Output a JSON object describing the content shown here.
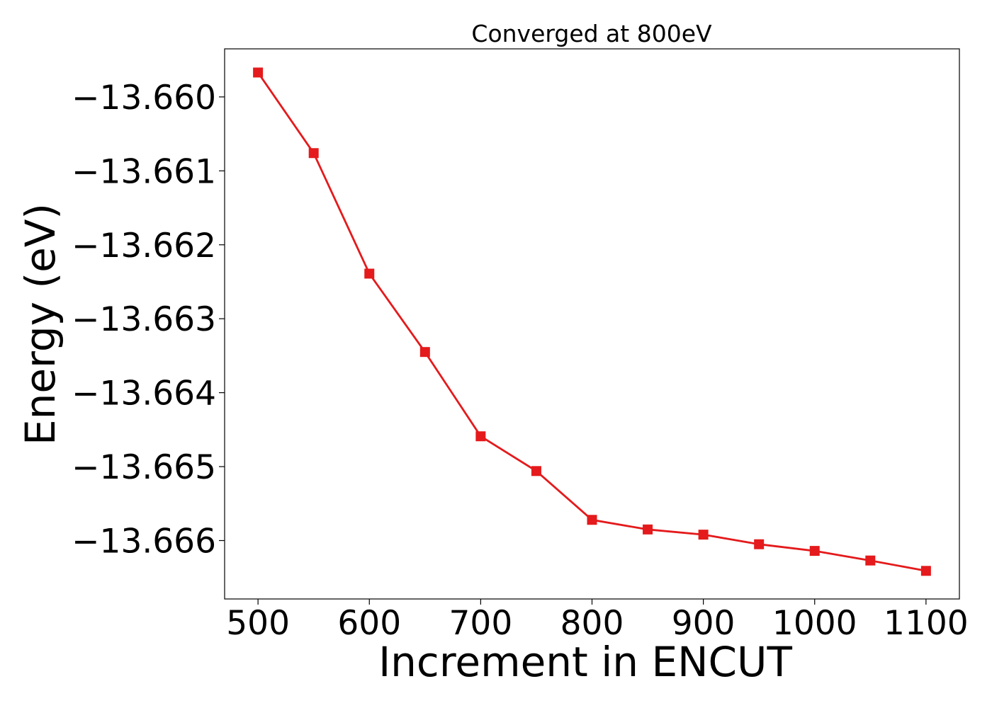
{
  "chart_data": {
    "type": "line",
    "title": "Converged at 800eV",
    "xlabel": "Increment in ENCUT",
    "ylabel": "Energy (eV)",
    "x": [
      500,
      550,
      600,
      650,
      700,
      750,
      800,
      850,
      900,
      950,
      1000,
      1050,
      1100
    ],
    "series": [
      {
        "values": [
          -13.65967,
          -13.66076,
          -13.66239,
          -13.66345,
          -13.66459,
          -13.66506,
          -13.66572,
          -13.66585,
          -13.66592,
          -13.66605,
          -13.66614,
          -13.66627,
          -13.66641
        ],
        "color": "#e41a1c",
        "marker": "square"
      }
    ],
    "xlim": [
      470,
      1130
    ],
    "ylim": [
      -13.66679,
      -13.65935
    ],
    "xticks": [
      500,
      600,
      700,
      800,
      900,
      1000,
      1100
    ],
    "xtick_labels": [
      "500",
      "600",
      "700",
      "800",
      "900",
      "1000",
      "1100"
    ],
    "yticks": [
      -13.66,
      -13.661,
      -13.662,
      -13.663,
      -13.664,
      -13.665,
      -13.666
    ],
    "ytick_labels": [
      "−13.660",
      "−13.661",
      "−13.662",
      "−13.663",
      "−13.664",
      "−13.665",
      "−13.666"
    ],
    "grid": false,
    "legend": "none"
  }
}
